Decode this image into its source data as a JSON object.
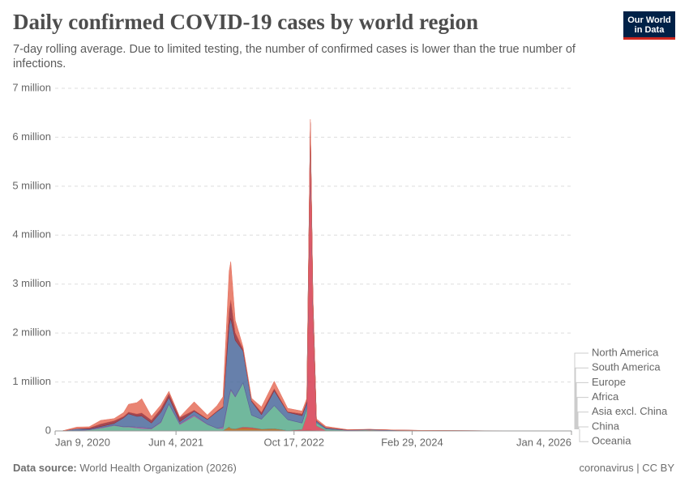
{
  "chart_data": {
    "type": "stacked-area",
    "title": "Daily confirmed COVID-19 cases by world region",
    "subtitle": "7-day rolling average. Due to limited testing, the number of confirmed cases is lower than the true number of infections.",
    "logo": [
      "Our World",
      "in Data"
    ],
    "source_label": "Data source:",
    "source": "World Health Organization (2026)",
    "license": "coronavirus | CC BY",
    "x": [
      "2020-01-09",
      "2020-02-10",
      "2020-04-10",
      "2020-06-01",
      "2020-07-20",
      "2020-09-15",
      "2020-10-25",
      "2020-11-15",
      "2020-12-20",
      "2021-01-10",
      "2021-02-20",
      "2021-04-01",
      "2021-05-05",
      "2021-06-20",
      "2021-08-20",
      "2021-10-15",
      "2021-11-25",
      "2021-12-20",
      "2022-01-15",
      "2022-01-22",
      "2022-02-10",
      "2022-03-15",
      "2022-04-20",
      "2022-06-01",
      "2022-07-25",
      "2022-09-20",
      "2022-11-20",
      "2022-12-10",
      "2022-12-25",
      "2023-01-05",
      "2023-01-20",
      "2023-03-01",
      "2023-06-01",
      "2023-09-01",
      "2024-01-01",
      "2024-06-01",
      "2025-01-01",
      "2026-01-04"
    ],
    "series": [
      {
        "name": "North America",
        "color": "#e56e5a",
        "values": [
          0,
          0,
          32000,
          24000,
          72000,
          45000,
          80000,
          160000,
          230000,
          290000,
          80000,
          75000,
          50000,
          12000,
          170000,
          80000,
          110000,
          200000,
          800000,
          780000,
          250000,
          45000,
          45000,
          110000,
          150000,
          70000,
          55000,
          60000,
          60000,
          50000,
          35000,
          25000,
          5000,
          3000,
          1000,
          1000,
          0,
          0
        ]
      },
      {
        "name": "South America",
        "color": "#932834",
        "values": [
          0,
          0,
          3000,
          20000,
          55000,
          55000,
          30000,
          35000,
          50000,
          65000,
          60000,
          75000,
          75000,
          85000,
          25000,
          12000,
          15000,
          18000,
          300000,
          380000,
          160000,
          40000,
          20000,
          50000,
          45000,
          12000,
          40000,
          40000,
          30000,
          20000,
          10000,
          8000,
          3000,
          1000,
          1000,
          1000,
          500,
          200
        ]
      },
      {
        "name": "Europe",
        "color": "#4c6a9c",
        "values": [
          0,
          0,
          35000,
          17000,
          18000,
          35000,
          180000,
          260000,
          220000,
          230000,
          110000,
          200000,
          130000,
          40000,
          75000,
          95000,
          340000,
          400000,
          1450000,
          1450000,
          1150000,
          650000,
          280000,
          90000,
          300000,
          150000,
          150000,
          100000,
          90000,
          60000,
          35000,
          20000,
          5000,
          8000,
          8000,
          3000,
          2000,
          1000
        ]
      },
      {
        "name": "Africa",
        "color": "#a2559c",
        "values": [
          0,
          0,
          1000,
          3000,
          15000,
          8000,
          6000,
          10000,
          18000,
          28000,
          10000,
          12000,
          10000,
          18000,
          25000,
          6000,
          3000,
          35000,
          30000,
          20000,
          10000,
          5000,
          3000,
          4000,
          4000,
          2000,
          1000,
          1000,
          1000,
          1000,
          1000,
          1000,
          500,
          200,
          100,
          0,
          0,
          0
        ]
      },
      {
        "name": "Asia excl. China",
        "color": "#58ac8c",
        "values": [
          0,
          1000,
          8000,
          20000,
          55000,
          110000,
          80000,
          80000,
          60000,
          45000,
          40000,
          170000,
          545000,
          130000,
          300000,
          130000,
          50000,
          40000,
          600000,
          780000,
          650000,
          900000,
          250000,
          200000,
          470000,
          220000,
          130000,
          150000,
          190000,
          120000,
          60000,
          30000,
          10000,
          5000,
          6000,
          3000,
          1000,
          1000
        ]
      },
      {
        "name": "China",
        "color": "#d73c50",
        "values": [
          0,
          3000,
          50,
          0,
          0,
          0,
          0,
          0,
          0,
          100,
          0,
          0,
          0,
          0,
          0,
          0,
          0,
          0,
          200,
          200,
          200,
          20000,
          20000,
          2000,
          1000,
          1000,
          20000,
          300000,
          5980000,
          2500000,
          100000,
          5000,
          2000,
          15000,
          1000,
          500,
          500,
          100
        ]
      },
      {
        "name": "Oceania",
        "color": "#b16214",
        "values": [
          0,
          0,
          300,
          0,
          500,
          100,
          0,
          0,
          0,
          0,
          0,
          0,
          0,
          0,
          700,
          2000,
          1500,
          5000,
          80000,
          50000,
          40000,
          60000,
          50000,
          35000,
          45000,
          8000,
          10000,
          15000,
          15000,
          10000,
          5000,
          4000,
          2000,
          2000,
          1000,
          1000,
          500,
          300
        ]
      }
    ],
    "xlim": [
      "2020-01-09",
      "2026-01-04"
    ],
    "xticks": [
      {
        "value": "2020-01-09",
        "label": "Jan 9, 2020"
      },
      {
        "value": "2021-06-04",
        "label": "Jun 4, 2021"
      },
      {
        "value": "2022-10-17",
        "label": "Oct 17, 2022"
      },
      {
        "value": "2024-02-29",
        "label": "Feb 29, 2024"
      },
      {
        "value": "2026-01-04",
        "label": "Jan 4, 2026"
      }
    ],
    "ylim": [
      0,
      7000000
    ],
    "yticks": [
      0,
      {
        "value": 1000000,
        "label": "1 million"
      },
      {
        "value": 2000000,
        "label": "2 million"
      },
      {
        "value": 3000000,
        "label": "3 million"
      },
      {
        "value": 4000000,
        "label": "4 million"
      },
      {
        "value": 5000000,
        "label": "5 million"
      },
      {
        "value": 6000000,
        "label": "6 million"
      },
      {
        "value": 7000000,
        "label": "7 million"
      }
    ],
    "grid": true,
    "legend": "right"
  }
}
